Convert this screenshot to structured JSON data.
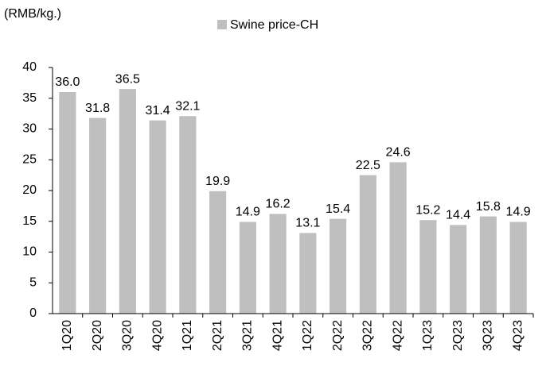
{
  "chart_data": {
    "type": "bar",
    "y_unit": "(RMB/kg.)",
    "categories": [
      "1Q20",
      "2Q20",
      "3Q20",
      "4Q20",
      "1Q21",
      "2Q21",
      "3Q21",
      "4Q21",
      "1Q22",
      "2Q22",
      "3Q22",
      "4Q22",
      "1Q23",
      "2Q23",
      "3Q23",
      "4Q23"
    ],
    "series": [
      {
        "name": "Swine price-CH",
        "color": "#bfbfbf",
        "values": [
          36.0,
          31.8,
          36.5,
          31.4,
          32.1,
          19.9,
          14.9,
          16.2,
          13.1,
          15.4,
          22.5,
          24.6,
          15.2,
          14.4,
          15.8,
          14.9
        ],
        "value_labels": [
          "36.0",
          "31.8",
          "36.5",
          "31.4",
          "32.1",
          "19.9",
          "14.9",
          "16.2",
          "13.1",
          "15.4",
          "22.5",
          "24.6",
          "15.2",
          "14.4",
          "15.8",
          "14.9"
        ]
      }
    ],
    "ylim": [
      0,
      40
    ],
    "yticks": [
      0,
      5,
      10,
      15,
      20,
      25,
      30,
      35,
      40
    ],
    "grid": false,
    "legend": "top"
  }
}
